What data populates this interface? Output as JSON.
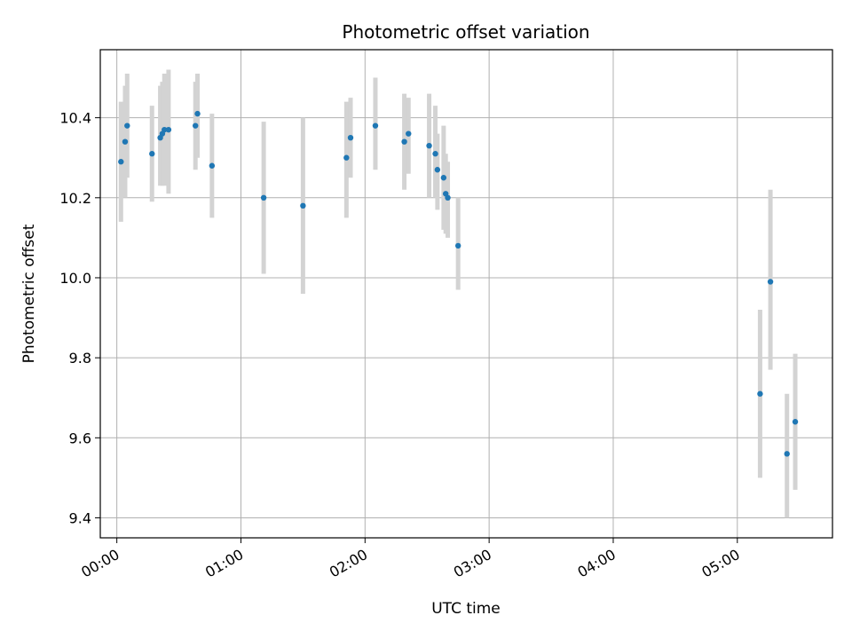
{
  "chart_data": {
    "type": "scatter",
    "title": "Photometric offset variation",
    "xlabel": "UTC time",
    "ylabel": "Photometric offset",
    "xlim": [
      "23:52",
      "05:46"
    ],
    "ylim": [
      9.35,
      10.57
    ],
    "x_tick_labels": [
      "00:00",
      "01:00",
      "02:00",
      "03:00",
      "04:00",
      "05:00"
    ],
    "y_tick_labels": [
      "9.4",
      "9.6",
      "9.8",
      "10.0",
      "10.2",
      "10.4"
    ],
    "y_ticks": [
      9.4,
      9.6,
      9.8,
      10.0,
      10.2,
      10.4
    ],
    "grid": true,
    "colors": {
      "points": "#1f77b4",
      "error_bars": "#d3d3d3",
      "grid": "#b0b0b0"
    },
    "series": [
      {
        "points": [
          {
            "x": "00:02",
            "y": 10.29,
            "yerr_low": 10.14,
            "yerr_high": 10.44
          },
          {
            "x": "00:04",
            "y": 10.34,
            "yerr_low": 10.2,
            "yerr_high": 10.48
          },
          {
            "x": "00:05",
            "y": 10.38,
            "yerr_low": 10.25,
            "yerr_high": 10.51
          },
          {
            "x": "00:17",
            "y": 10.31,
            "yerr_low": 10.19,
            "yerr_high": 10.43
          },
          {
            "x": "00:21",
            "y": 10.35,
            "yerr_low": 10.23,
            "yerr_high": 10.48
          },
          {
            "x": "00:22",
            "y": 10.36,
            "yerr_low": 10.23,
            "yerr_high": 10.49
          },
          {
            "x": "00:23",
            "y": 10.37,
            "yerr_low": 10.23,
            "yerr_high": 10.51
          },
          {
            "x": "00:25",
            "y": 10.37,
            "yerr_low": 10.21,
            "yerr_high": 10.52
          },
          {
            "x": "00:38",
            "y": 10.38,
            "yerr_low": 10.27,
            "yerr_high": 10.49
          },
          {
            "x": "00:39",
            "y": 10.41,
            "yerr_low": 10.3,
            "yerr_high": 10.51
          },
          {
            "x": "00:46",
            "y": 10.28,
            "yerr_low": 10.15,
            "yerr_high": 10.41
          },
          {
            "x": "01:11",
            "y": 10.2,
            "yerr_low": 10.01,
            "yerr_high": 10.39
          },
          {
            "x": "01:30",
            "y": 10.18,
            "yerr_low": 9.96,
            "yerr_high": 10.4
          },
          {
            "x": "01:51",
            "y": 10.3,
            "yerr_low": 10.15,
            "yerr_high": 10.44
          },
          {
            "x": "01:53",
            "y": 10.35,
            "yerr_low": 10.25,
            "yerr_high": 10.45
          },
          {
            "x": "02:05",
            "y": 10.38,
            "yerr_low": 10.27,
            "yerr_high": 10.5
          },
          {
            "x": "02:19",
            "y": 10.34,
            "yerr_low": 10.22,
            "yerr_high": 10.46
          },
          {
            "x": "02:21",
            "y": 10.36,
            "yerr_low": 10.26,
            "yerr_high": 10.45
          },
          {
            "x": "02:31",
            "y": 10.33,
            "yerr_low": 10.2,
            "yerr_high": 10.46
          },
          {
            "x": "02:34",
            "y": 10.31,
            "yerr_low": 10.2,
            "yerr_high": 10.43
          },
          {
            "x": "02:35",
            "y": 10.27,
            "yerr_low": 10.17,
            "yerr_high": 10.36
          },
          {
            "x": "02:38",
            "y": 10.25,
            "yerr_low": 10.12,
            "yerr_high": 10.38
          },
          {
            "x": "02:39",
            "y": 10.21,
            "yerr_low": 10.11,
            "yerr_high": 10.31
          },
          {
            "x": "02:40",
            "y": 10.2,
            "yerr_low": 10.1,
            "yerr_high": 10.29
          },
          {
            "x": "02:45",
            "y": 10.08,
            "yerr_low": 9.97,
            "yerr_high": 10.2
          },
          {
            "x": "05:11",
            "y": 9.71,
            "yerr_low": 9.5,
            "yerr_high": 9.92
          },
          {
            "x": "05:16",
            "y": 9.99,
            "yerr_low": 9.77,
            "yerr_high": 10.22
          },
          {
            "x": "05:24",
            "y": 9.56,
            "yerr_low": 9.4,
            "yerr_high": 9.71
          },
          {
            "x": "05:28",
            "y": 9.64,
            "yerr_low": 9.47,
            "yerr_high": 9.81
          }
        ]
      }
    ]
  }
}
